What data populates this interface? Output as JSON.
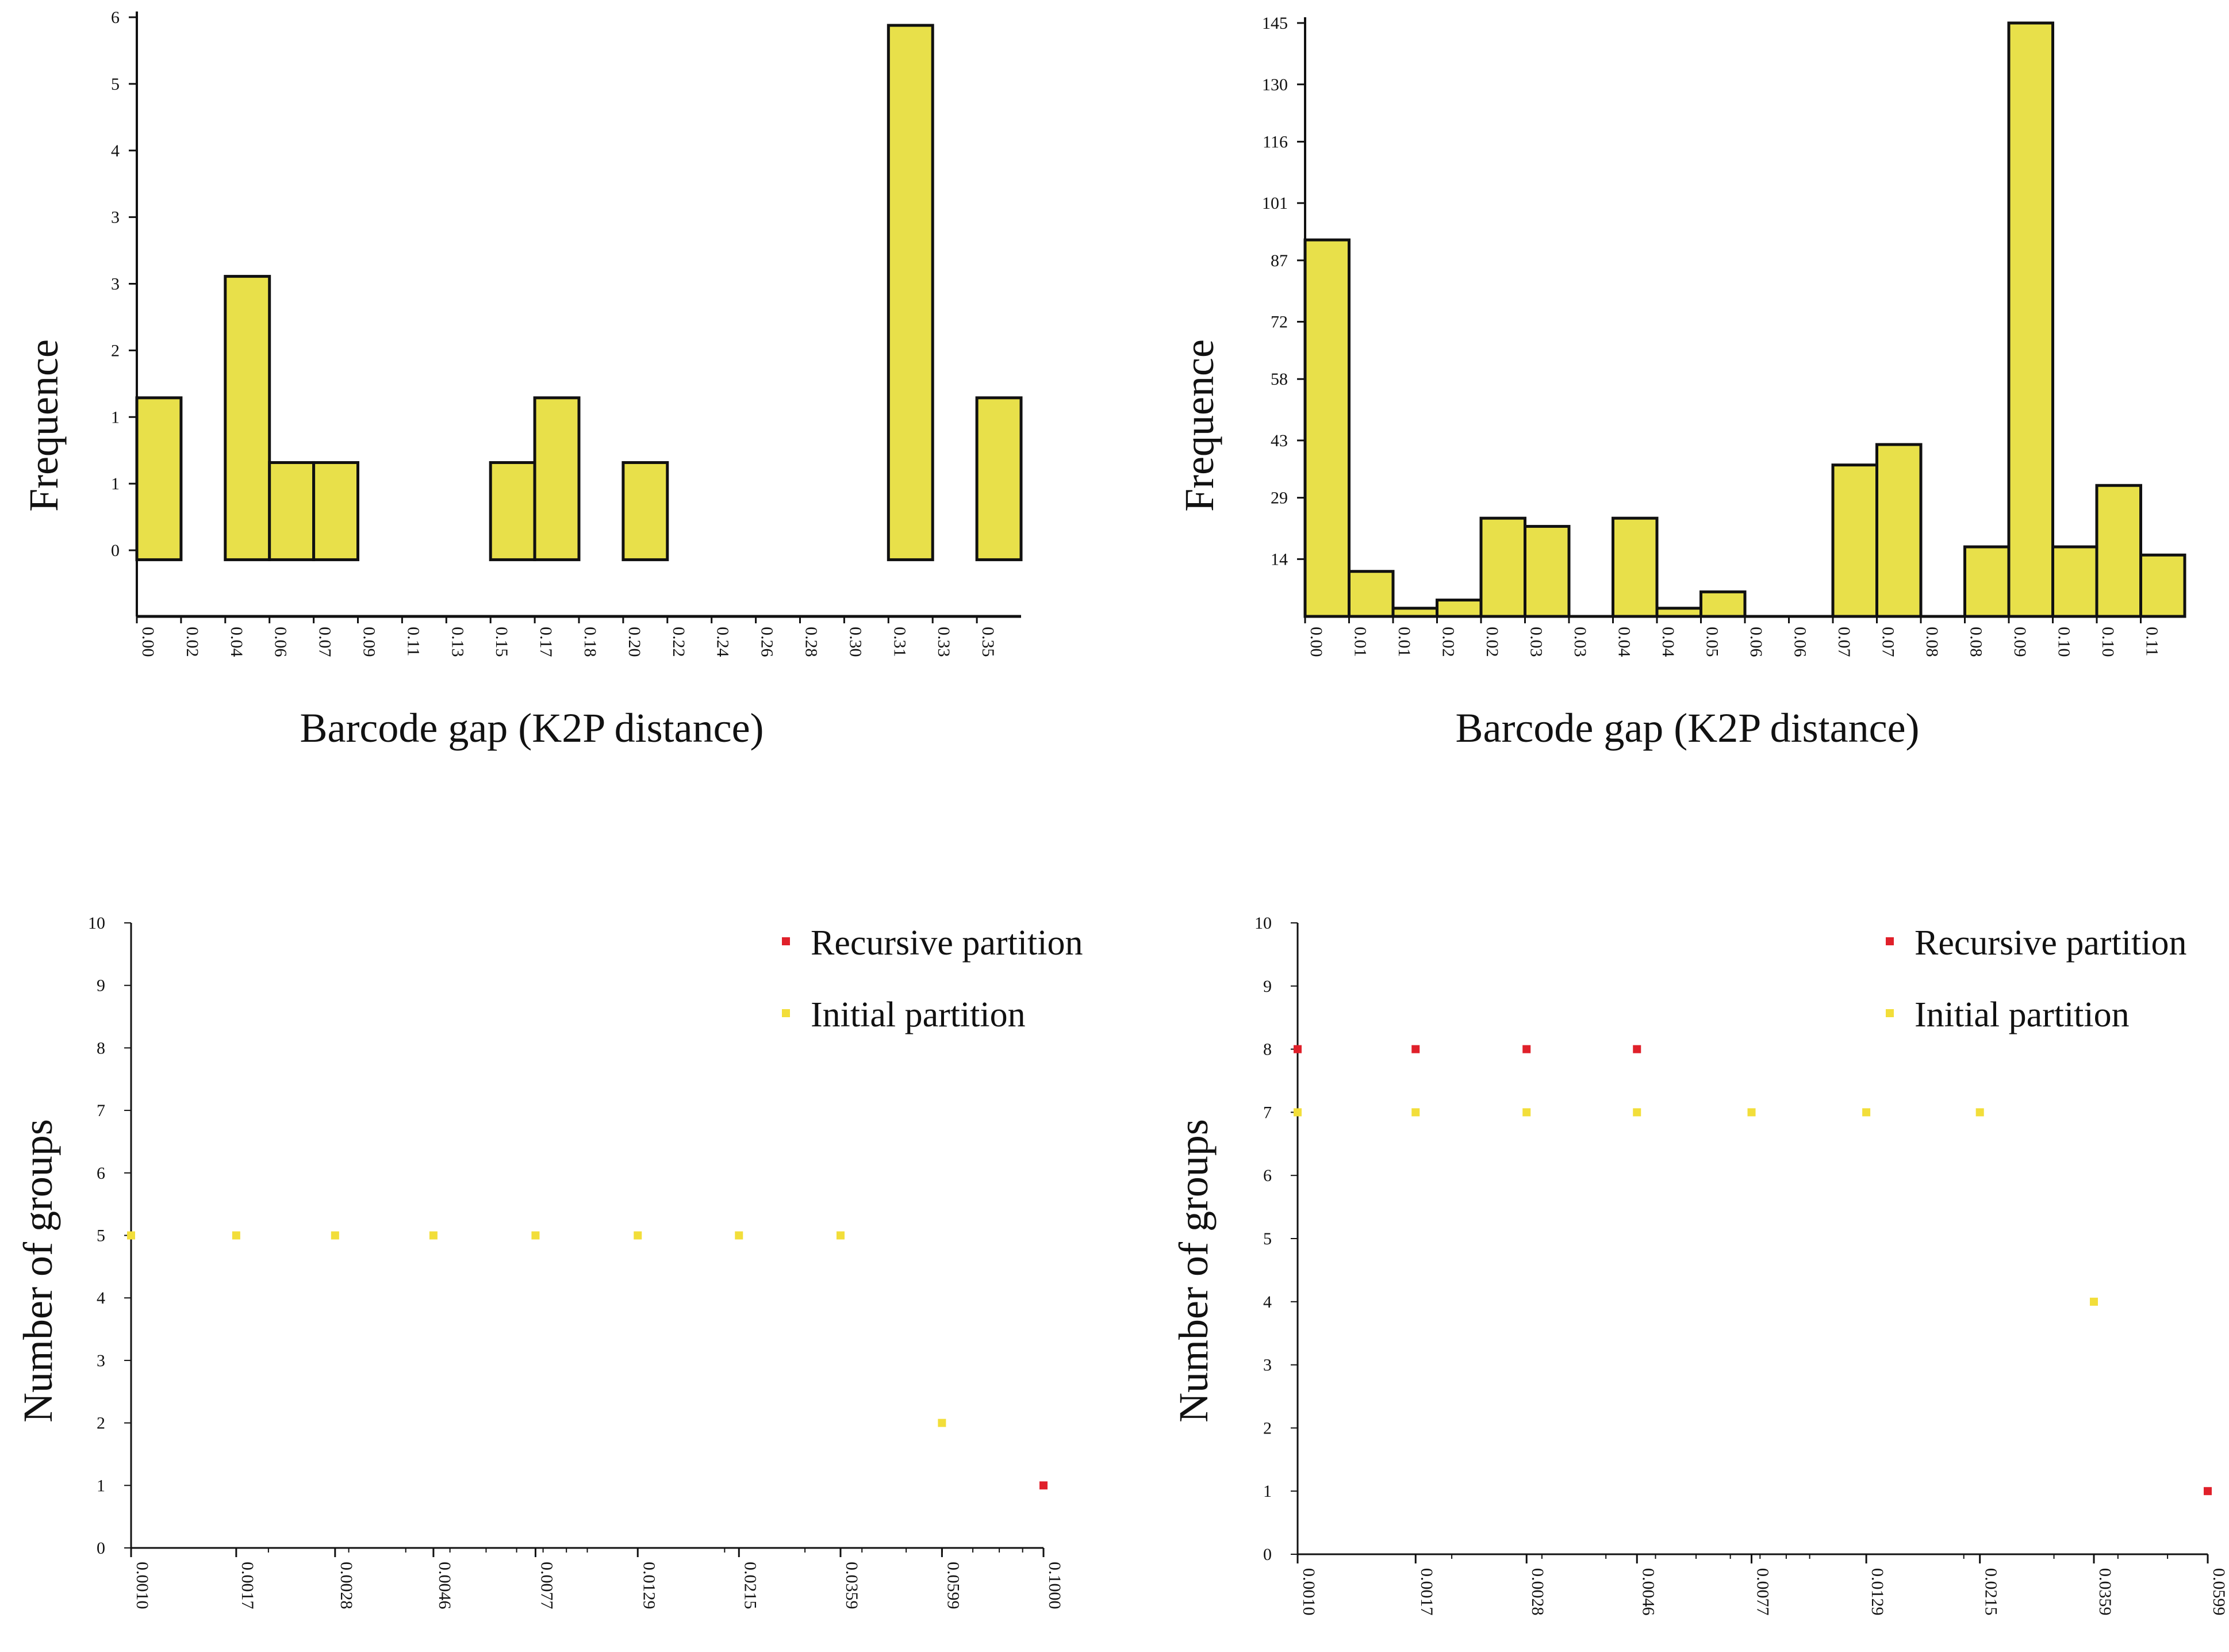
{
  "chart_data": [
    {
      "type": "bar",
      "ylabel": "Frequence",
      "xlabel": "Barcode gap (K2P distance)",
      "categories": [
        "0.00",
        "0.02",
        "0.04",
        "0.06",
        "0.07",
        "0.09",
        "0.11",
        "0.13",
        "0.15",
        "0.17",
        "0.18",
        "0.20",
        "0.22",
        "0.24",
        "0.26",
        "0.28",
        "0.30",
        "0.31",
        "0.33",
        "0.35"
      ],
      "y_tick_labels": [
        "0",
        "1",
        "1",
        "2",
        "3",
        "3",
        "4",
        "5",
        "6"
      ],
      "values": [
        2,
        0,
        3.5,
        1.2,
        1.2,
        0,
        0,
        0,
        1.2,
        2,
        0,
        1.2,
        0,
        0,
        0,
        0,
        0,
        6.6,
        0,
        2
      ],
      "ylim": [
        -0.7,
        6.7
      ],
      "colors": {
        "bar": "#e8e04a",
        "edge": "#111111"
      }
    },
    {
      "type": "bar",
      "ylabel": "Frequence",
      "xlabel": "Barcode gap (K2P distance)",
      "categories": [
        "0.00",
        "0.01",
        "0.01",
        "0.02",
        "0.02",
        "0.03",
        "0.03",
        "0.04",
        "0.04",
        "0.05",
        "0.06",
        "0.06",
        "0.07",
        "0.07",
        "0.08",
        "0.08",
        "0.09",
        "0.10",
        "0.10",
        "0.11"
      ],
      "y_tick_labels": [
        "14",
        "29",
        "43",
        "58",
        "72",
        "87",
        "101",
        "116",
        "130",
        "145"
      ],
      "y_tick_values": [
        14,
        29,
        43,
        58,
        72,
        87,
        101,
        116,
        130,
        145
      ],
      "values": [
        92,
        11,
        2,
        4,
        24,
        22,
        0,
        24,
        2,
        6,
        0,
        0,
        37,
        42,
        0,
        17,
        145,
        17,
        32,
        15
      ],
      "ylim": [
        0,
        145
      ],
      "colors": {
        "bar": "#e8e04a",
        "edge": "#111111"
      }
    },
    {
      "type": "scatter",
      "ylabel": "Number of groups",
      "x_tick_labels": [
        "0.0010",
        "0.0017",
        "0.0028",
        "0.0046",
        "0.0077",
        "0.0129",
        "0.0215",
        "0.0359",
        "0.0599",
        "0.1000"
      ],
      "ylim": [
        0,
        10
      ],
      "y_ticks": [
        0,
        1,
        2,
        3,
        4,
        5,
        6,
        7,
        8,
        9,
        10
      ],
      "series": [
        {
          "name": "Recursive partition",
          "color": "#e0202a",
          "points": [
            [
              0.1,
              1
            ]
          ]
        },
        {
          "name": "Initial partition",
          "color": "#f2de3a",
          "points": [
            [
              0.001,
              5
            ],
            [
              0.0017,
              5
            ],
            [
              0.0028,
              5
            ],
            [
              0.0046,
              5
            ],
            [
              0.0077,
              5
            ],
            [
              0.0129,
              5
            ],
            [
              0.0215,
              5
            ],
            [
              0.0359,
              5
            ],
            [
              0.0599,
              2
            ]
          ]
        }
      ]
    },
    {
      "type": "scatter",
      "ylabel": "Number of groups",
      "x_tick_labels": [
        "0.0010",
        "0.0017",
        "0.0028",
        "0.0046",
        "0.0077",
        "0.0129",
        "0.0215",
        "0.0359",
        "0.0599"
      ],
      "ylim": [
        0,
        10
      ],
      "y_ticks": [
        0,
        1,
        2,
        3,
        4,
        5,
        6,
        7,
        8,
        9,
        10
      ],
      "series": [
        {
          "name": "Recursive partition",
          "color": "#e0202a",
          "points": [
            [
              0.001,
              8
            ],
            [
              0.0017,
              8
            ],
            [
              0.0028,
              8
            ],
            [
              0.0046,
              8
            ],
            [
              0.0599,
              1
            ]
          ]
        },
        {
          "name": "Initial partition",
          "color": "#f2de3a",
          "points": [
            [
              0.001,
              7
            ],
            [
              0.0017,
              7
            ],
            [
              0.0028,
              7
            ],
            [
              0.0046,
              7
            ],
            [
              0.0077,
              7
            ],
            [
              0.0129,
              7
            ],
            [
              0.0215,
              7
            ],
            [
              0.0359,
              4
            ]
          ]
        }
      ]
    }
  ]
}
